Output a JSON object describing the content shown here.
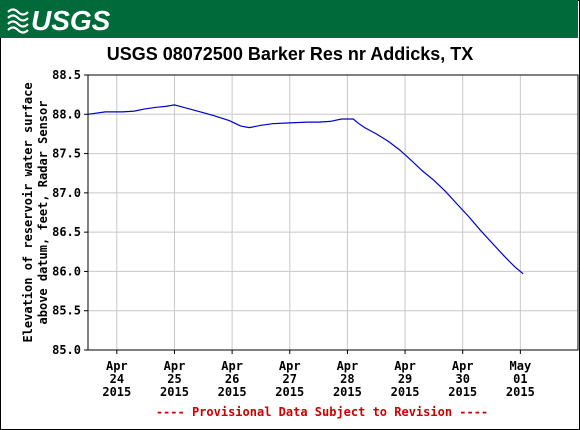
{
  "header": {
    "logo_text": "USGS",
    "colors": {
      "band": "#006a3a",
      "logo": "#ffffff"
    }
  },
  "chart_data": {
    "type": "line",
    "title": "USGS 08072500 Barker Res nr Addicks, TX",
    "xlabel": "",
    "ylabel_lines": [
      "Elevation of reservoir water surface",
      "above datum, feet, Radar Sensor"
    ],
    "ylim": [
      85.0,
      88.5
    ],
    "yticks": [
      85.0,
      85.5,
      86.0,
      86.5,
      87.0,
      87.5,
      88.0,
      88.5
    ],
    "ytick_labels": [
      "85.0",
      "85.5",
      "86.0",
      "86.5",
      "87.0",
      "87.5",
      "88.0",
      "88.5"
    ],
    "xlim": [
      0,
      8.5
    ],
    "xticks": [
      {
        "x": 0.5,
        "lines": [
          "Apr",
          "24",
          "2015"
        ]
      },
      {
        "x": 1.5,
        "lines": [
          "Apr",
          "25",
          "2015"
        ]
      },
      {
        "x": 2.5,
        "lines": [
          "Apr",
          "26",
          "2015"
        ]
      },
      {
        "x": 3.5,
        "lines": [
          "Apr",
          "27",
          "2015"
        ]
      },
      {
        "x": 4.5,
        "lines": [
          "Apr",
          "28",
          "2015"
        ]
      },
      {
        "x": 5.5,
        "lines": [
          "Apr",
          "29",
          "2015"
        ]
      },
      {
        "x": 6.5,
        "lines": [
          "Apr",
          "30",
          "2015"
        ]
      },
      {
        "x": 7.5,
        "lines": [
          "May",
          "01",
          "2015"
        ]
      }
    ],
    "grid": true,
    "series": [
      {
        "color": "#0000cc",
        "x": [
          0.0,
          0.3,
          0.6,
          0.8,
          1.0,
          1.2,
          1.35,
          1.5,
          1.6,
          1.8,
          2.0,
          2.2,
          2.45,
          2.65,
          2.8,
          3.0,
          3.2,
          3.5,
          3.8,
          4.0,
          4.2,
          4.4,
          4.6,
          4.7,
          4.8,
          5.0,
          5.2,
          5.4,
          5.6,
          5.8,
          6.0,
          6.2,
          6.4,
          6.6,
          6.8,
          7.0,
          7.2,
          7.4,
          7.55
        ],
        "y": [
          88.0,
          88.03,
          88.03,
          88.04,
          88.07,
          88.09,
          88.1,
          88.12,
          88.1,
          88.06,
          88.02,
          87.98,
          87.92,
          87.85,
          87.83,
          87.86,
          87.88,
          87.89,
          87.9,
          87.9,
          87.91,
          87.94,
          87.94,
          87.88,
          87.83,
          87.75,
          87.66,
          87.55,
          87.42,
          87.28,
          87.16,
          87.02,
          86.86,
          86.7,
          86.53,
          86.37,
          86.21,
          86.06,
          85.97
        ]
      }
    ],
    "footnote": "---- Provisional Data Subject to Revision ----"
  }
}
